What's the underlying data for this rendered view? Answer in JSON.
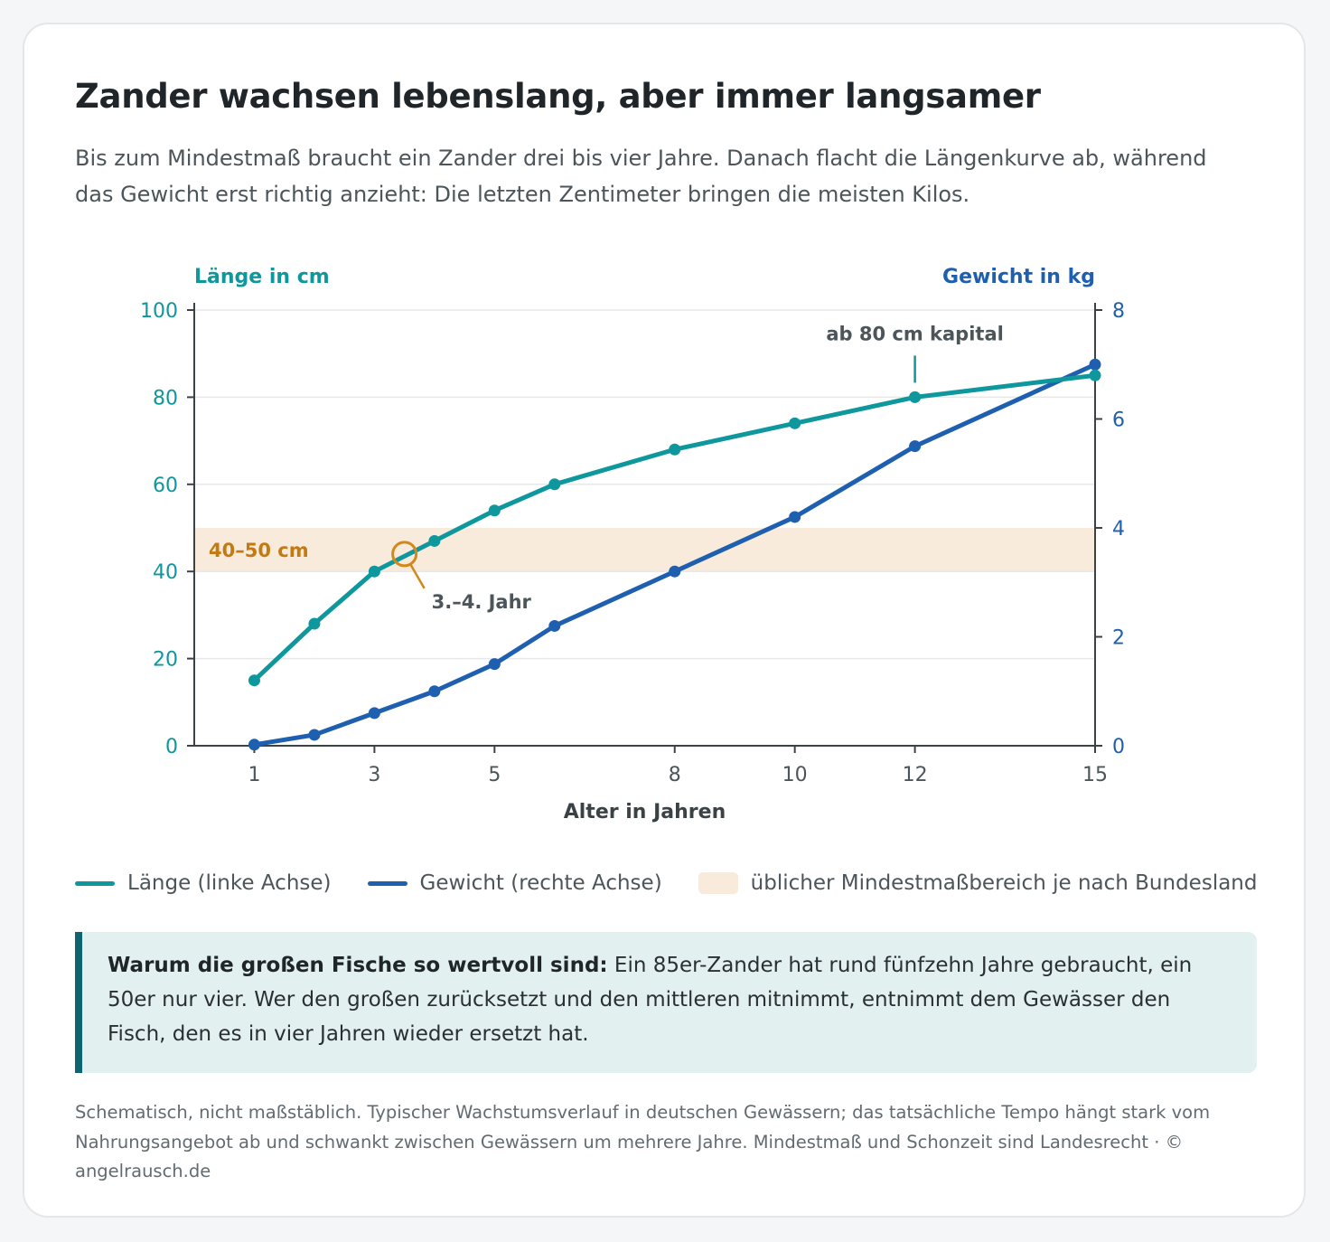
{
  "header": {
    "title": "Zander wachsen lebenslang, aber immer langsamer",
    "subtitle": "Bis zum Mindestmaß braucht ein Zander drei bis vier Jahre. Danach flacht die Längenkurve ab, während das Gewicht erst richtig anzieht: Die letzten Zentimeter bringen die meisten Kilos."
  },
  "chart_data": {
    "type": "line",
    "xlabel": "Alter in Jahren",
    "ylabel_left": "Länge in cm",
    "ylabel_right": "Gewicht in kg",
    "x_ticks": [
      1,
      3,
      5,
      8,
      10,
      12,
      15
    ],
    "xlim": [
      0,
      15
    ],
    "ylim_left": [
      0,
      100
    ],
    "ylim_right": [
      0,
      8
    ],
    "y_ticks_left": [
      0,
      20,
      40,
      60,
      80,
      100
    ],
    "y_ticks_right": [
      0,
      2,
      4,
      6,
      8
    ],
    "grid": true,
    "series": [
      {
        "name": "Länge (linke Achse)",
        "axis": "left",
        "color": "#0e979c",
        "x": [
          1,
          2,
          3,
          4,
          5,
          6,
          8,
          10,
          12,
          15
        ],
        "y": [
          15,
          28,
          40,
          47,
          54,
          60,
          68,
          74,
          80,
          85
        ]
      },
      {
        "name": "Gewicht (rechte Achse)",
        "axis": "right",
        "color": "#1f5fb0",
        "x": [
          1,
          2,
          3,
          4,
          5,
          6,
          8,
          10,
          12,
          15
        ],
        "y": [
          0.02,
          0.2,
          0.6,
          1.0,
          1.5,
          2.2,
          3.2,
          4.2,
          5.5,
          7.0
        ]
      }
    ],
    "band": {
      "label": "40–50 cm",
      "y_from": 40,
      "y_to": 50,
      "color": "#f8ebdc",
      "label_color": "#c47a10"
    },
    "annotations": [
      {
        "text": "3.–4. Jahr",
        "x": 3.5,
        "y": 44,
        "color": "#d0891a"
      },
      {
        "text": "ab 80 cm kapital",
        "x": 12,
        "y": 80
      }
    ]
  },
  "legend": {
    "length": "Länge (linke Achse)",
    "weight": "Gewicht (rechte Achse)",
    "band": "üblicher Mindestmaßbereich je nach Bundesland"
  },
  "note": {
    "bold": "Warum die großen Fische so wertvoll sind:",
    "text": " Ein 85er-Zander hat rund fünfzehn Jahre gebraucht, ein 50er nur vier. Wer den großen zurücksetzt und den mittleren mitnimmt, entnimmt dem Gewässer den Fisch, den es in vier Jahren wieder ersetzt hat."
  },
  "footnote": "Schematisch, nicht maßstäblich. Typischer Wachstumsverlauf in deutschen Gewässern; das tatsächliche Tempo hängt stark vom Nahrungsangebot ab und schwankt zwischen Gewässern um mehrere Jahre. Mindestmaß und Schonzeit sind Landesrecht · © angelrausch.de",
  "colors": {
    "teal": "#0e979c",
    "blue": "#1f5fb0",
    "band": "#f8ebdc",
    "orange": "#d0891a",
    "note_bg": "#e2f0f0",
    "note_border": "#0e6470"
  }
}
